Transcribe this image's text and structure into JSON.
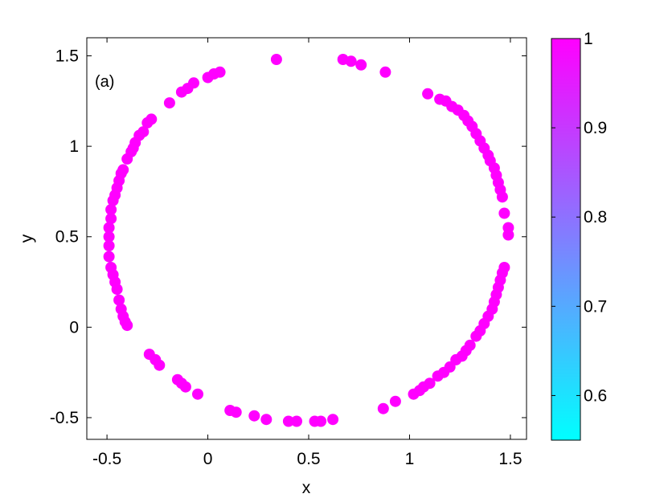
{
  "chart_data": {
    "type": "scatter",
    "title": "",
    "xlabel": "x",
    "ylabel": "y",
    "annotation": "(a)",
    "xlim": [
      -0.6,
      1.58
    ],
    "ylim": [
      -0.62,
      1.6
    ],
    "xticks": [
      -0.5,
      0,
      0.5,
      1,
      1.5
    ],
    "xtick_labels": [
      "-0.5",
      "0",
      "0.5",
      "1",
      "1.5"
    ],
    "yticks": [
      -0.5,
      0,
      0.5,
      1,
      1.5
    ],
    "ytick_labels": [
      "-0.5",
      "0",
      "0.5",
      "1",
      "1.5"
    ],
    "grid": false,
    "marker_color": "#ff00ff",
    "colorbar": {
      "range": [
        0.55,
        1.0
      ],
      "ticks": [
        0.6,
        0.7,
        0.8,
        0.9,
        1.0
      ],
      "tick_labels": [
        "0.6",
        "0.7",
        "0.8",
        "0.9",
        "1"
      ],
      "color_low": "#00ffff",
      "color_high": "#ff00ff"
    },
    "points": [
      [
        0.34,
        1.48
      ],
      [
        0.67,
        1.48
      ],
      [
        0.71,
        1.47
      ],
      [
        0.76,
        1.45
      ],
      [
        0.88,
        1.41
      ],
      [
        0.06,
        1.41
      ],
      [
        0.03,
        1.4
      ],
      [
        0.0,
        1.38
      ],
      [
        -0.07,
        1.35
      ],
      [
        -0.1,
        1.32
      ],
      [
        -0.13,
        1.3
      ],
      [
        -0.19,
        1.24
      ],
      [
        -0.28,
        1.15
      ],
      [
        -0.3,
        1.13
      ],
      [
        -0.32,
        1.08
      ],
      [
        -0.34,
        1.06
      ],
      [
        -0.36,
        1.02
      ],
      [
        -0.37,
        0.99
      ],
      [
        -0.38,
        0.97
      ],
      [
        -0.4,
        0.93
      ],
      [
        -0.42,
        0.87
      ],
      [
        -0.43,
        0.85
      ],
      [
        -0.44,
        0.81
      ],
      [
        -0.45,
        0.77
      ],
      [
        -0.46,
        0.73
      ],
      [
        -0.47,
        0.7
      ],
      [
        -0.48,
        0.65
      ],
      [
        -0.48,
        0.6
      ],
      [
        -0.49,
        0.55
      ],
      [
        -0.49,
        0.5
      ],
      [
        -0.49,
        0.45
      ],
      [
        -0.49,
        0.39
      ],
      [
        -0.48,
        0.33
      ],
      [
        -0.47,
        0.29
      ],
      [
        -0.46,
        0.25
      ],
      [
        -0.45,
        0.21
      ],
      [
        -0.44,
        0.15
      ],
      [
        -0.43,
        0.1
      ],
      [
        -0.42,
        0.06
      ],
      [
        -0.41,
        0.03
      ],
      [
        -0.4,
        0.01
      ],
      [
        -0.29,
        -0.15
      ],
      [
        -0.26,
        -0.18
      ],
      [
        -0.24,
        -0.21
      ],
      [
        -0.15,
        -0.29
      ],
      [
        -0.13,
        -0.31
      ],
      [
        -0.11,
        -0.33
      ],
      [
        -0.05,
        -0.37
      ],
      [
        0.11,
        -0.46
      ],
      [
        0.14,
        -0.47
      ],
      [
        0.23,
        -0.49
      ],
      [
        0.29,
        -0.51
      ],
      [
        0.4,
        -0.52
      ],
      [
        0.44,
        -0.52
      ],
      [
        0.53,
        -0.52
      ],
      [
        0.56,
        -0.52
      ],
      [
        0.62,
        -0.51
      ],
      [
        0.87,
        -0.45
      ],
      [
        0.93,
        -0.41
      ],
      [
        1.02,
        -0.37
      ],
      [
        1.05,
        -0.35
      ],
      [
        1.07,
        -0.33
      ],
      [
        1.1,
        -0.31
      ],
      [
        1.14,
        -0.27
      ],
      [
        1.17,
        -0.25
      ],
      [
        1.2,
        -0.22
      ],
      [
        1.23,
        -0.18
      ],
      [
        1.26,
        -0.16
      ],
      [
        1.28,
        -0.13
      ],
      [
        1.3,
        -0.1
      ],
      [
        1.33,
        -0.05
      ],
      [
        1.35,
        -0.02
      ],
      [
        1.37,
        0.02
      ],
      [
        1.39,
        0.06
      ],
      [
        1.41,
        0.1
      ],
      [
        1.42,
        0.14
      ],
      [
        1.43,
        0.18
      ],
      [
        1.44,
        0.22
      ],
      [
        1.45,
        0.26
      ],
      [
        1.46,
        0.3
      ],
      [
        1.47,
        0.33
      ],
      [
        1.49,
        0.51
      ],
      [
        1.49,
        0.55
      ],
      [
        1.47,
        0.63
      ],
      [
        1.46,
        0.72
      ],
      [
        1.45,
        0.76
      ],
      [
        1.44,
        0.8
      ],
      [
        1.43,
        0.84
      ],
      [
        1.42,
        0.88
      ],
      [
        1.4,
        0.92
      ],
      [
        1.39,
        0.95
      ],
      [
        1.37,
        0.99
      ],
      [
        1.35,
        1.03
      ],
      [
        1.33,
        1.07
      ],
      [
        1.31,
        1.11
      ],
      [
        1.29,
        1.14
      ],
      [
        1.27,
        1.17
      ],
      [
        1.24,
        1.2
      ],
      [
        1.21,
        1.22
      ],
      [
        1.18,
        1.25
      ],
      [
        1.15,
        1.26
      ],
      [
        1.09,
        1.29
      ]
    ]
  }
}
